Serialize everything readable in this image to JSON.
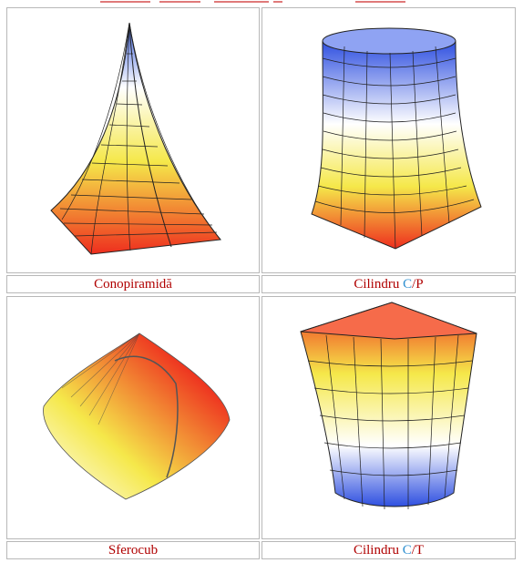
{
  "figures": [
    {
      "name": "Conopiramidă"
    },
    {
      "name": "Cilindru",
      "code_a": "C",
      "slash": "/",
      "code_b": "P"
    },
    {
      "name": "Sferocub"
    },
    {
      "name": "Cilindru",
      "code_a": "C",
      "slash": "/",
      "code_b": "T"
    }
  ],
  "colors": {
    "caption_text": "#b00000",
    "code_letter": "#2e8fd0",
    "border": "#b8b8b8"
  }
}
